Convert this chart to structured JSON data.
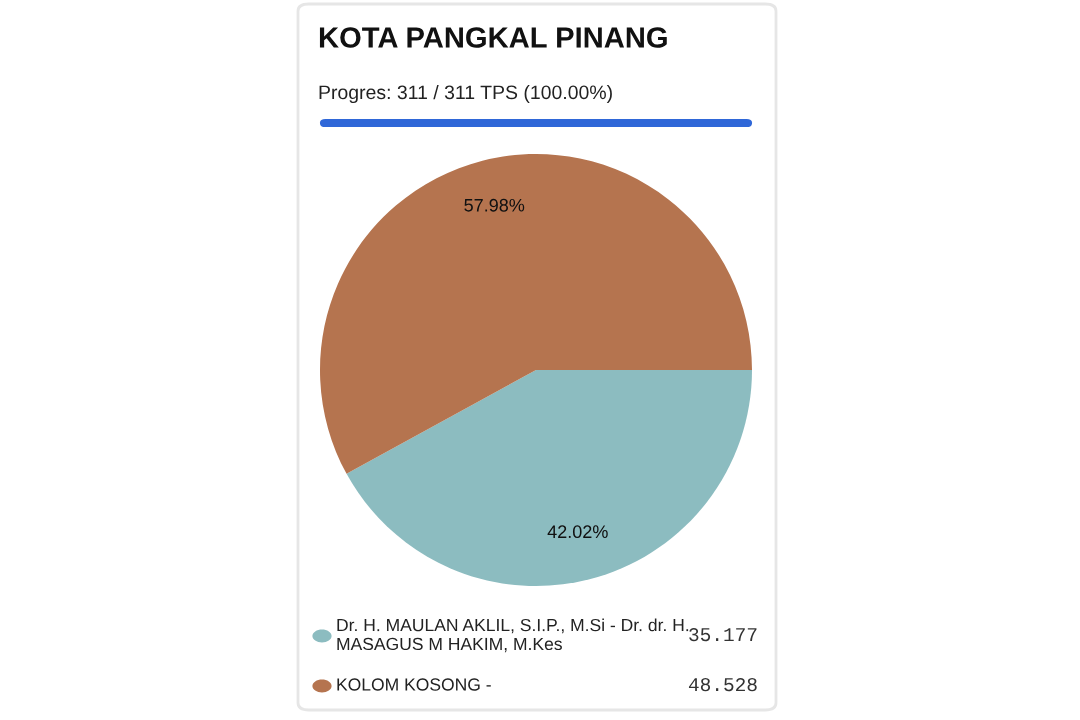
{
  "chart_data": {
    "type": "pie",
    "title": "KOTA PANGKAL PINANG",
    "subtitle": "Progres: 311 / 311 TPS (100.00%)",
    "categories": [
      "Dr. H. MAULAN AKLIL, S.I.P., M.Si - Dr. dr. H. MASAGUS M HAKIM, M.Kes",
      "KOLOM KOSONG -"
    ],
    "values": [
      35.177,
      48.528
    ],
    "colors": [
      "#8cbcc0",
      "#b5744f"
    ],
    "value_labels": [
      "35.177",
      "48.528"
    ],
    "annotations": [
      "42.02%",
      "57.98%"
    ],
    "legend": "bottom"
  }
}
